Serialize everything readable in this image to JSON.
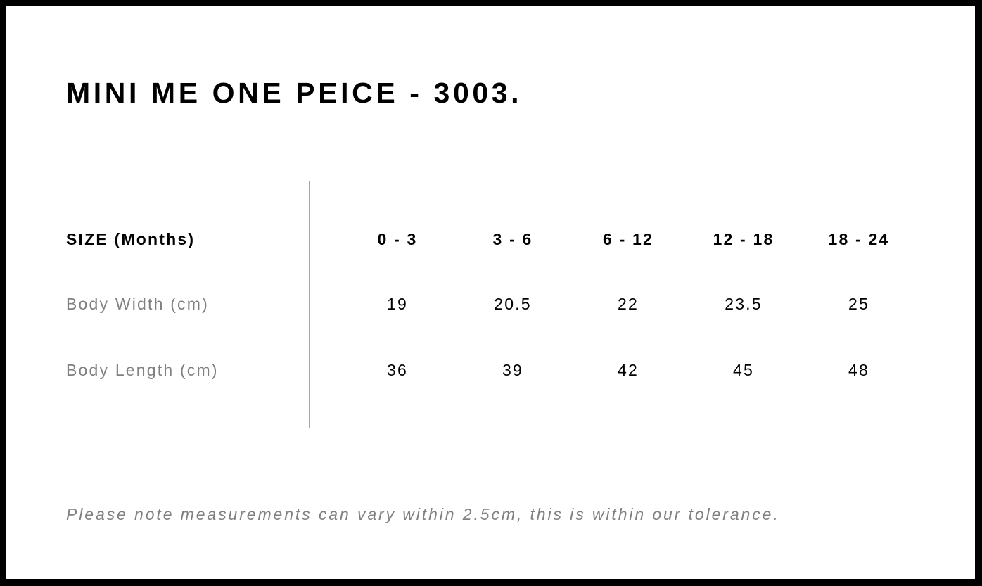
{
  "title": "MINI ME ONE PEICE - 3003.",
  "table": {
    "header": {
      "label": "SIZE (Months)",
      "sizes": [
        "0 - 3",
        "3 - 6",
        "6 - 12",
        "12 - 18",
        "18 - 24"
      ]
    },
    "rows": [
      {
        "label": "Body Width (cm)",
        "values": [
          "19",
          "20.5",
          "22",
          "23.5",
          "25"
        ]
      },
      {
        "label": "Body Length (cm)",
        "values": [
          "36",
          "39",
          "42",
          "45",
          "48"
        ]
      }
    ]
  },
  "note": "Please note measurements can vary within 2.5cm, this is within our tolerance.",
  "colors": {
    "border": "#000000",
    "label_grey": "#808080",
    "divider": "#a8a8a8"
  }
}
